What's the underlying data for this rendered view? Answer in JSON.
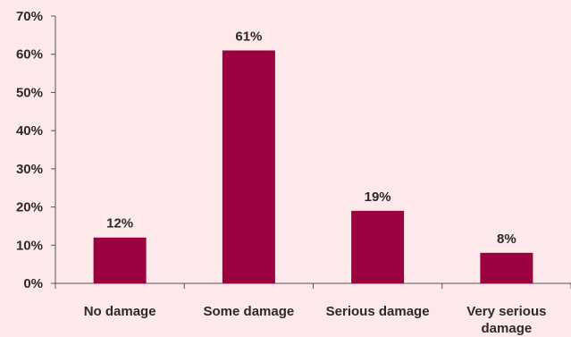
{
  "background_color": "#fde8ea",
  "chart_data": {
    "type": "bar",
    "categories": [
      "No damage",
      "Some damage",
      "Serious damage",
      "Very serious damage"
    ],
    "category_lines": [
      [
        "No damage"
      ],
      [
        "Some damage"
      ],
      [
        "Serious damage"
      ],
      [
        "Very serious",
        "damage"
      ]
    ],
    "values": [
      12,
      61,
      19,
      8
    ],
    "value_labels": [
      "12%",
      "61%",
      "19%",
      "8%"
    ],
    "ylim": [
      0,
      70
    ],
    "y_ticks": [
      0,
      10,
      20,
      30,
      40,
      50,
      60,
      70
    ],
    "y_tick_labels": [
      "0%",
      "10%",
      "20%",
      "30%",
      "40%",
      "50%",
      "60%",
      "70%"
    ],
    "bar_color": "#9b0040",
    "axis_color": "#555555",
    "grid": false,
    "legend": "none",
    "title": "",
    "xlabel": "",
    "ylabel": ""
  }
}
